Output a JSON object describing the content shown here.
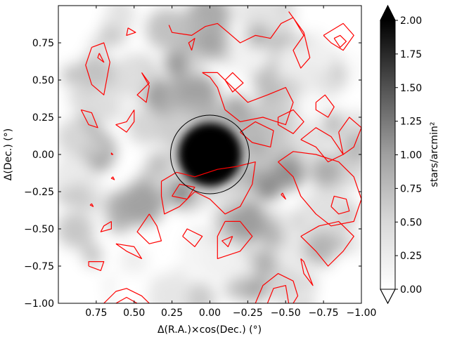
{
  "chart_data": {
    "type": "heatmap",
    "title": "",
    "xlabel": "Δ(R.A.)×cos(Dec.) (°)",
    "ylabel": "Δ(Dec.) (°)",
    "xlim": [
      1.0,
      -1.0
    ],
    "ylim": [
      -1.0,
      1.0
    ],
    "x_inverted": true,
    "grid": false,
    "x_ticks": [
      0.75,
      0.5,
      0.25,
      0.0,
      -0.25,
      -0.5,
      -0.75,
      -1.0
    ],
    "x_tick_labels": [
      "0.75",
      "0.50",
      "0.25",
      "0.00",
      "−0.25",
      "−0.50",
      "−0.75",
      "−1.00"
    ],
    "y_ticks": [
      0.75,
      0.5,
      0.25,
      0.0,
      -0.25,
      -0.5,
      -0.75,
      -1.0
    ],
    "y_tick_labels": [
      "0.75",
      "0.50",
      "0.25",
      "0.00",
      "−0.25",
      "−0.50",
      "−0.75",
      "−1.00"
    ],
    "colorbar": {
      "label": "stars/arcmin²",
      "min": 0.0,
      "max": 2.0,
      "ticks": [
        0.0,
        0.25,
        0.5,
        0.75,
        1.0,
        1.25,
        1.5,
        1.75,
        2.0
      ],
      "tick_labels": [
        "0.00",
        "0.25",
        "0.50",
        "0.75",
        "1.00",
        "1.25",
        "1.50",
        "1.75",
        "2.00"
      ],
      "extend": "both",
      "colormap": "Greys"
    },
    "central_peak": {
      "x": 0.0,
      "y": 0.0,
      "value": 2.0
    },
    "circle": {
      "x": 0.0,
      "y": 0.0,
      "radius": 0.26,
      "color": "#000000"
    },
    "contour_color": "#ff0000",
    "overlays": [
      {
        "name": "contour",
        "color": "#ff0000",
        "points": [
          [
            0.54,
            0.85
          ],
          [
            0.49,
            0.82
          ],
          [
            0.55,
            0.8
          ],
          [
            0.54,
            0.85
          ]
        ]
      },
      {
        "name": "contour",
        "color": "#ff0000",
        "points": [
          [
            0.78,
            0.72
          ],
          [
            0.7,
            0.75
          ],
          [
            0.66,
            0.62
          ],
          [
            0.7,
            0.4
          ],
          [
            0.78,
            0.47
          ],
          [
            0.82,
            0.6
          ],
          [
            0.78,
            0.72
          ]
        ]
      },
      {
        "name": "contour",
        "color": "#ff0000",
        "points": [
          [
            0.73,
            0.68
          ],
          [
            0.7,
            0.62
          ],
          [
            0.74,
            0.65
          ],
          [
            0.73,
            0.68
          ]
        ]
      },
      {
        "name": "contour",
        "color": "#ff0000",
        "points": [
          [
            0.27,
            0.87
          ],
          [
            0.25,
            0.82
          ],
          [
            0.12,
            0.8
          ],
          [
            0.03,
            0.86
          ],
          [
            -0.05,
            0.88
          ],
          [
            -0.12,
            0.82
          ],
          [
            -0.2,
            0.75
          ],
          [
            -0.3,
            0.8
          ],
          [
            -0.4,
            0.78
          ],
          [
            -0.47,
            0.88
          ],
          [
            -0.55,
            0.92
          ],
          [
            -0.62,
            0.8
          ],
          [
            -0.55,
            0.7
          ],
          [
            -0.6,
            0.58
          ],
          [
            -0.66,
            0.65
          ],
          [
            -0.62,
            0.82
          ],
          [
            -0.52,
            0.96
          ]
        ]
      },
      {
        "name": "contour",
        "color": "#ff0000",
        "points": [
          [
            0.12,
            0.7
          ],
          [
            0.1,
            0.78
          ],
          [
            0.14,
            0.75
          ],
          [
            0.12,
            0.7
          ]
        ]
      },
      {
        "name": "contour",
        "color": "#ff0000",
        "points": [
          [
            -0.75,
            0.8
          ],
          [
            -0.8,
            0.75
          ],
          [
            -0.88,
            0.7
          ],
          [
            -0.95,
            0.8
          ],
          [
            -0.88,
            0.88
          ],
          [
            -0.75,
            0.8
          ]
        ]
      },
      {
        "name": "contour",
        "color": "#ff0000",
        "points": [
          [
            -0.82,
            0.78
          ],
          [
            -0.86,
            0.72
          ],
          [
            -0.9,
            0.76
          ],
          [
            -0.86,
            0.8
          ],
          [
            -0.82,
            0.78
          ]
        ]
      },
      {
        "name": "contour",
        "color": "#ff0000",
        "points": [
          [
            0.45,
            0.55
          ],
          [
            0.4,
            0.48
          ],
          [
            0.48,
            0.4
          ],
          [
            0.42,
            0.35
          ],
          [
            0.4,
            0.46
          ],
          [
            0.45,
            0.55
          ]
        ]
      },
      {
        "name": "contour",
        "color": "#ff0000",
        "points": [
          [
            0.5,
            0.3
          ],
          [
            0.55,
            0.22
          ],
          [
            0.62,
            0.2
          ],
          [
            0.55,
            0.15
          ],
          [
            0.5,
            0.22
          ],
          [
            0.5,
            0.3
          ]
        ]
      },
      {
        "name": "contour",
        "color": "#ff0000",
        "points": [
          [
            0.85,
            0.3
          ],
          [
            0.8,
            0.2
          ],
          [
            0.74,
            0.18
          ],
          [
            0.78,
            0.28
          ],
          [
            0.85,
            0.3
          ]
        ]
      },
      {
        "name": "contour",
        "color": "#ff0000",
        "points": [
          [
            0.05,
            0.55
          ],
          [
            0.0,
            0.52
          ],
          [
            -0.05,
            0.45
          ],
          [
            -0.1,
            0.3
          ],
          [
            -0.2,
            0.22
          ],
          [
            -0.35,
            0.25
          ],
          [
            -0.5,
            0.2
          ],
          [
            -0.55,
            0.35
          ],
          [
            -0.5,
            0.45
          ],
          [
            -0.38,
            0.4
          ],
          [
            -0.25,
            0.35
          ],
          [
            -0.15,
            0.45
          ],
          [
            -0.05,
            0.55
          ],
          [
            0.05,
            0.55
          ]
        ]
      },
      {
        "name": "contour",
        "color": "#ff0000",
        "points": [
          [
            -0.1,
            0.5
          ],
          [
            -0.15,
            0.42
          ],
          [
            -0.22,
            0.48
          ],
          [
            -0.15,
            0.55
          ],
          [
            -0.1,
            0.5
          ]
        ]
      },
      {
        "name": "contour",
        "color": "#ff0000",
        "points": [
          [
            -0.2,
            0.15
          ],
          [
            -0.3,
            0.22
          ],
          [
            -0.42,
            0.16
          ],
          [
            -0.4,
            0.05
          ],
          [
            -0.28,
            0.08
          ],
          [
            -0.2,
            0.15
          ]
        ]
      },
      {
        "name": "contour",
        "color": "#ff0000",
        "points": [
          [
            -0.45,
            0.25
          ],
          [
            -0.55,
            0.3
          ],
          [
            -0.62,
            0.22
          ],
          [
            -0.55,
            0.14
          ],
          [
            -0.45,
            0.2
          ],
          [
            -0.45,
            0.25
          ]
        ]
      },
      {
        "name": "contour",
        "color": "#ff0000",
        "points": [
          [
            -0.7,
            0.35
          ],
          [
            -0.76,
            0.4
          ],
          [
            -0.82,
            0.32
          ],
          [
            -0.78,
            0.25
          ],
          [
            -0.7,
            0.3
          ],
          [
            -0.7,
            0.35
          ]
        ]
      },
      {
        "name": "contour",
        "color": "#ff0000",
        "points": [
          [
            -0.85,
            0.15
          ],
          [
            -0.92,
            0.25
          ],
          [
            -1.0,
            0.18
          ],
          [
            -0.95,
            0.05
          ],
          [
            -0.88,
            0.0
          ],
          [
            -0.85,
            0.15
          ]
        ]
      },
      {
        "name": "contour",
        "color": "#ff0000",
        "points": [
          [
            -0.6,
            0.1
          ],
          [
            -0.7,
            0.05
          ],
          [
            -0.78,
            -0.05
          ],
          [
            -0.88,
            0.0
          ],
          [
            -0.8,
            0.12
          ],
          [
            -0.7,
            0.18
          ],
          [
            -0.6,
            0.1
          ]
        ]
      },
      {
        "name": "contour",
        "color": "#ff0000",
        "points": [
          [
            0.32,
            -0.18
          ],
          [
            0.22,
            -0.12
          ],
          [
            0.1,
            -0.15
          ],
          [
            -0.05,
            -0.1
          ],
          [
            -0.18,
            -0.08
          ],
          [
            -0.3,
            -0.05
          ],
          [
            -0.28,
            -0.2
          ],
          [
            -0.2,
            -0.35
          ],
          [
            -0.1,
            -0.4
          ],
          [
            0.0,
            -0.3
          ],
          [
            0.1,
            -0.25
          ],
          [
            0.2,
            -0.35
          ],
          [
            0.3,
            -0.4
          ],
          [
            0.32,
            -0.28
          ],
          [
            0.32,
            -0.18
          ]
        ]
      },
      {
        "name": "contour",
        "color": "#ff0000",
        "points": [
          [
            0.25,
            -0.28
          ],
          [
            0.15,
            -0.3
          ],
          [
            0.1,
            -0.22
          ],
          [
            0.2,
            -0.2
          ],
          [
            0.25,
            -0.28
          ]
        ]
      },
      {
        "name": "contour",
        "color": "#ff0000",
        "points": [
          [
            -0.45,
            -0.05
          ],
          [
            -0.55,
            -0.15
          ],
          [
            -0.6,
            -0.28
          ],
          [
            -0.7,
            -0.4
          ],
          [
            -0.8,
            -0.48
          ],
          [
            -0.95,
            -0.45
          ],
          [
            -1.0,
            -0.3
          ],
          [
            -0.95,
            -0.15
          ],
          [
            -0.85,
            -0.05
          ],
          [
            -0.7,
            0.0
          ],
          [
            -0.55,
            0.02
          ],
          [
            -0.45,
            -0.05
          ]
        ]
      },
      {
        "name": "contour",
        "color": "#ff0000",
        "points": [
          [
            -0.8,
            -0.35
          ],
          [
            -0.85,
            -0.4
          ],
          [
            -0.92,
            -0.38
          ],
          [
            -0.9,
            -0.3
          ],
          [
            -0.82,
            -0.28
          ],
          [
            -0.8,
            -0.35
          ]
        ]
      },
      {
        "name": "contour",
        "color": "#ff0000",
        "points": [
          [
            -0.47,
            -0.27
          ],
          [
            -0.5,
            -0.3
          ],
          [
            -0.48,
            -0.26
          ],
          [
            -0.47,
            -0.27
          ]
        ]
      },
      {
        "name": "contour",
        "color": "#ff0000",
        "points": [
          [
            -0.1,
            -0.45
          ],
          [
            -0.05,
            -0.55
          ],
          [
            -0.05,
            -0.7
          ],
          [
            -0.2,
            -0.65
          ],
          [
            -0.28,
            -0.55
          ],
          [
            -0.2,
            -0.45
          ],
          [
            -0.1,
            -0.45
          ]
        ]
      },
      {
        "name": "contour",
        "color": "#ff0000",
        "points": [
          [
            -0.15,
            -0.55
          ],
          [
            -0.08,
            -0.58
          ],
          [
            -0.12,
            -0.62
          ],
          [
            -0.15,
            -0.55
          ]
        ]
      },
      {
        "name": "contour",
        "color": "#ff0000",
        "points": [
          [
            0.4,
            -0.4
          ],
          [
            0.35,
            -0.48
          ],
          [
            0.32,
            -0.58
          ],
          [
            0.4,
            -0.6
          ],
          [
            0.48,
            -0.52
          ],
          [
            0.4,
            -0.4
          ]
        ]
      },
      {
        "name": "contour",
        "color": "#ff0000",
        "points": [
          [
            0.65,
            -0.45
          ],
          [
            0.7,
            -0.48
          ],
          [
            0.72,
            -0.52
          ],
          [
            0.65,
            -0.5
          ],
          [
            0.65,
            -0.45
          ]
        ]
      },
      {
        "name": "contour",
        "color": "#ff0000",
        "points": [
          [
            0.62,
            -0.6
          ],
          [
            0.55,
            -0.65
          ],
          [
            0.45,
            -0.7
          ],
          [
            0.5,
            -0.62
          ],
          [
            0.62,
            -0.6
          ]
        ]
      },
      {
        "name": "contour",
        "color": "#ff0000",
        "points": [
          [
            0.18,
            -0.55
          ],
          [
            0.1,
            -0.62
          ],
          [
            0.05,
            -0.55
          ],
          [
            0.15,
            -0.5
          ],
          [
            0.18,
            -0.55
          ]
        ]
      },
      {
        "name": "contour",
        "color": "#ff0000",
        "points": [
          [
            -0.6,
            -0.55
          ],
          [
            -0.7,
            -0.65
          ],
          [
            -0.78,
            -0.75
          ],
          [
            -0.88,
            -0.65
          ],
          [
            -0.95,
            -0.55
          ],
          [
            -0.85,
            -0.45
          ],
          [
            -0.72,
            -0.48
          ],
          [
            -0.6,
            -0.55
          ]
        ]
      },
      {
        "name": "contour",
        "color": "#ff0000",
        "points": [
          [
            -0.6,
            -0.7
          ],
          [
            -0.62,
            -0.8
          ],
          [
            -0.68,
            -0.88
          ],
          [
            -0.62,
            -0.72
          ],
          [
            -0.6,
            -0.7
          ]
        ]
      },
      {
        "name": "contour",
        "color": "#ff0000",
        "points": [
          [
            0.8,
            -0.75
          ],
          [
            0.72,
            -0.78
          ],
          [
            0.7,
            -0.72
          ],
          [
            0.8,
            -0.72
          ],
          [
            0.8,
            -0.75
          ]
        ]
      },
      {
        "name": "contour",
        "color": "#ff0000",
        "points": [
          [
            0.7,
            -1.0
          ],
          [
            0.62,
            -0.92
          ],
          [
            0.55,
            -0.9
          ],
          [
            0.45,
            -0.95
          ],
          [
            0.4,
            -1.0
          ]
        ]
      },
      {
        "name": "contour",
        "color": "#ff0000",
        "points": [
          [
            0.62,
            -1.0
          ],
          [
            0.55,
            -0.96
          ],
          [
            0.48,
            -1.0
          ]
        ]
      },
      {
        "name": "contour",
        "color": "#ff0000",
        "points": [
          [
            -0.3,
            -1.0
          ],
          [
            -0.35,
            -0.88
          ],
          [
            -0.45,
            -0.8
          ],
          [
            -0.55,
            -0.85
          ],
          [
            -0.58,
            -0.95
          ],
          [
            -0.55,
            -1.0
          ]
        ]
      },
      {
        "name": "contour",
        "color": "#ff0000",
        "points": [
          [
            -0.38,
            -1.0
          ],
          [
            -0.42,
            -0.9
          ],
          [
            -0.5,
            -0.88
          ],
          [
            -0.52,
            -1.0
          ]
        ]
      },
      {
        "name": "contour",
        "color": "#ff0000",
        "points": [
          [
            0.65,
            0.0
          ],
          [
            0.64,
            0.0
          ],
          [
            0.65,
            0.01
          ],
          [
            0.65,
            0.0
          ]
        ]
      },
      {
        "name": "contour",
        "color": "#ff0000",
        "points": [
          [
            0.64,
            -0.15
          ],
          [
            0.63,
            -0.17
          ],
          [
            0.65,
            -0.16
          ],
          [
            0.64,
            -0.15
          ]
        ]
      },
      {
        "name": "contour",
        "color": "#ff0000",
        "points": [
          [
            0.78,
            -0.33
          ],
          [
            0.77,
            -0.35
          ],
          [
            0.79,
            -0.34
          ],
          [
            0.78,
            -0.33
          ]
        ]
      }
    ]
  }
}
